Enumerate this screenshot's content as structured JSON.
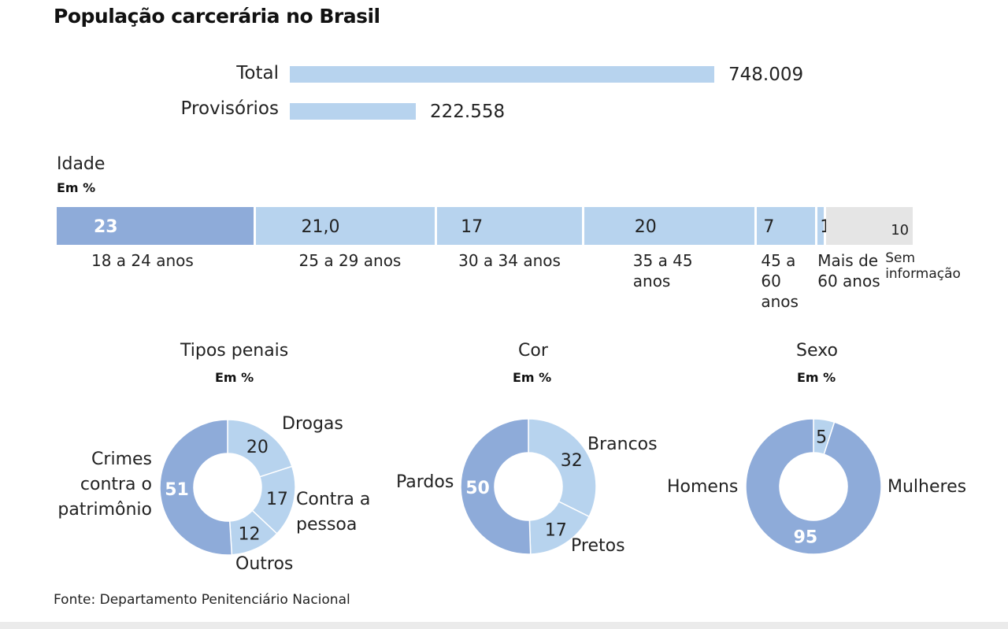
{
  "title": "População carcerária no Brasil",
  "source": "Fonte: Departamento Penitenciário Nacional",
  "colors": {
    "dark_blue": "#8eabd9",
    "light_blue": "#b7d3ee",
    "gray": "#e5e5e5"
  },
  "chart_data": [
    {
      "type": "bar",
      "orientation": "horizontal",
      "categories": [
        "Total",
        "Provisórios"
      ],
      "values": [
        748009,
        222558
      ],
      "value_labels": [
        "748.009",
        "222.558"
      ]
    },
    {
      "type": "bar",
      "orientation": "stacked-horizontal",
      "title": "Idade",
      "unit": "Em %",
      "categories": [
        "18 a 24 anos",
        "25 a 29 anos",
        "30 a 34 anos",
        "35 a 45 anos",
        "45 a 60 anos",
        "Mais de 60 anos",
        "Sem informação"
      ],
      "values": [
        23,
        21,
        17,
        20,
        7,
        1,
        10
      ],
      "value_labels": [
        "23",
        "21,0",
        "17",
        "20",
        "7",
        "1",
        "10"
      ]
    },
    {
      "type": "pie",
      "subtype": "donut",
      "title": "Tipos penais",
      "unit": "Em %",
      "categories": [
        "Drogas",
        "Contra a pessoa",
        "Outros",
        "Crimes contra o patrimônio"
      ],
      "values": [
        20,
        17,
        12,
        51
      ],
      "value_labels": [
        "20",
        "17",
        "12",
        "51"
      ]
    },
    {
      "type": "pie",
      "subtype": "donut",
      "title": "Cor",
      "unit": "Em %",
      "categories": [
        "Brancos",
        "Pretos",
        "Pardos"
      ],
      "values": [
        32,
        17,
        50
      ],
      "value_labels": [
        "32",
        "17",
        "50"
      ]
    },
    {
      "type": "pie",
      "subtype": "donut",
      "title": "Sexo",
      "unit": "Em %",
      "categories": [
        "Mulheres",
        "Homens"
      ],
      "values": [
        5,
        95
      ],
      "value_labels": [
        "5",
        "95"
      ]
    }
  ]
}
